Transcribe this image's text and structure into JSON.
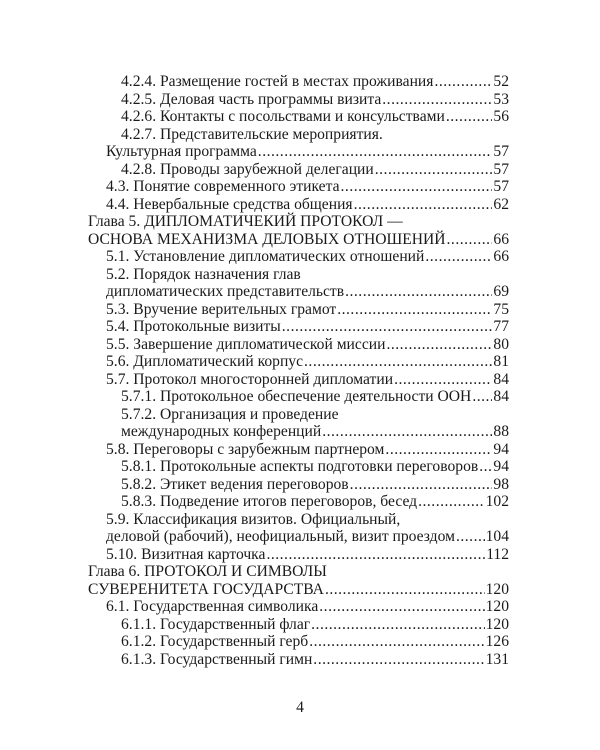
{
  "toc": [
    {
      "level": 2,
      "cont": 1,
      "lines": [
        "4.2.4. Размещение гостей в местах проживания"
      ],
      "page": "52"
    },
    {
      "level": 2,
      "cont": 1,
      "lines": [
        "4.2.5. Деловая часть программы визита"
      ],
      "page": "53"
    },
    {
      "level": 2,
      "cont": 1,
      "lines": [
        "4.2.6. Контакты с посольствами и консульствами"
      ],
      "page": "56"
    },
    {
      "level": 2,
      "cont": 1,
      "lines": [
        "4.2.7. Представительские мероприятия.",
        "Культурная программа"
      ],
      "page": "57"
    },
    {
      "level": 2,
      "cont": 1,
      "lines": [
        "4.2.8. Проводы зарубежной делегации"
      ],
      "page": "57"
    },
    {
      "level": 1,
      "cont": 1,
      "lines": [
        "4.3. Понятие современного этикета"
      ],
      "page": "57"
    },
    {
      "level": 1,
      "cont": 1,
      "lines": [
        "4.4. Невербальные средства общения"
      ],
      "page": "62"
    },
    {
      "level": 0,
      "cont": 0,
      "lines": [
        "Глава 5. ДИПЛОМАТИЧЕКИЙ ПРОТОКОЛ —",
        "ОСНОВА МЕХАНИЗМА ДЕЛОВЫХ ОТНОШЕНИЙ"
      ],
      "page": "66"
    },
    {
      "level": 1,
      "cont": 1,
      "lines": [
        "5.1. Установление дипломатических отношений"
      ],
      "page": "66"
    },
    {
      "level": 1,
      "cont": 1,
      "lines": [
        "5.2. Порядок назначения глав",
        "дипломатических представительств"
      ],
      "page": "69"
    },
    {
      "level": 1,
      "cont": 1,
      "lines": [
        "5.3. Вручение верительных грамот"
      ],
      "page": "75"
    },
    {
      "level": 1,
      "cont": 1,
      "lines": [
        "5.4. Протокольные визиты"
      ],
      "page": "77"
    },
    {
      "level": 1,
      "cont": 1,
      "lines": [
        "5.5. Завершение дипломатической миссии"
      ],
      "page": "80"
    },
    {
      "level": 1,
      "cont": 1,
      "lines": [
        "5.6. Дипломатический корпус"
      ],
      "page": "81"
    },
    {
      "level": 1,
      "cont": 1,
      "lines": [
        "5.7. Протокол многосторонней дипломатии"
      ],
      "page": "84"
    },
    {
      "level": 2,
      "cont": 2,
      "lines": [
        "5.7.1. Протокольное обеспечение деятельности ООН"
      ],
      "page": "84"
    },
    {
      "level": 2,
      "cont": 2,
      "lines": [
        "5.7.2. Организация и проведение",
        "международных конференций"
      ],
      "page": "88"
    },
    {
      "level": 1,
      "cont": 1,
      "lines": [
        "5.8. Переговоры с зарубежным партнером"
      ],
      "page": "94"
    },
    {
      "level": 2,
      "cont": 2,
      "lines": [
        "5.8.1. Протокольные аспекты подготовки переговоров"
      ],
      "page": "94"
    },
    {
      "level": 2,
      "cont": 2,
      "lines": [
        "5.8.2. Этикет ведения переговоров"
      ],
      "page": "98"
    },
    {
      "level": 2,
      "cont": 2,
      "lines": [
        "5.8.3. Подведение итогов переговоров, бесед"
      ],
      "page": "102"
    },
    {
      "level": 1,
      "cont": 1,
      "lines": [
        "5.9. Классификация визитов. Официальный,",
        "деловой (рабочий), неофициальный, визит проездом"
      ],
      "page": "104"
    },
    {
      "level": 1,
      "cont": 1,
      "lines": [
        "5.10. Визитная карточка"
      ],
      "page": "112"
    },
    {
      "level": 0,
      "cont": 0,
      "lines": [
        "Глава 6. ПРОТОКОЛ И СИМВОЛЫ",
        "СУВЕРЕНИТЕТА ГОСУДАРСТВА"
      ],
      "page": "120"
    },
    {
      "level": 1,
      "cont": 1,
      "lines": [
        "6.1. Государственная символика"
      ],
      "page": "120"
    },
    {
      "level": 2,
      "cont": 2,
      "lines": [
        "6.1.1. Государственный флаг"
      ],
      "page": "120"
    },
    {
      "level": 2,
      "cont": 2,
      "lines": [
        "6.1.2. Государственный герб"
      ],
      "page": "126"
    },
    {
      "level": 2,
      "cont": 2,
      "lines": [
        "6.1.3. Государственный гимн"
      ],
      "page": "131"
    }
  ],
  "page_number": "4"
}
